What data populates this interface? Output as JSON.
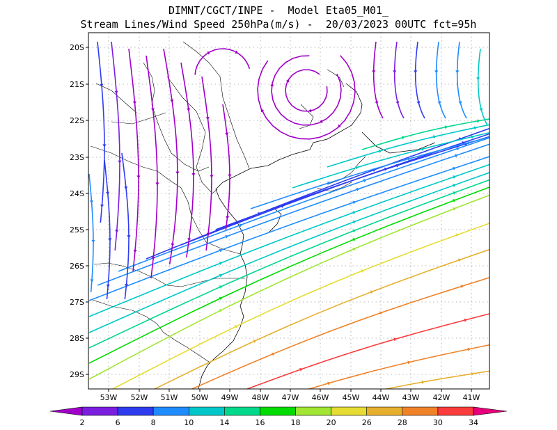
{
  "title": {
    "line1": "DIMNT/CGCT/INPE -  Model Eta05_M01_",
    "line2": "Stream Lines/Wind Speed 250hPa(m/s) -  20/03/2023 00UTC fct=95h"
  },
  "map": {
    "lat_labels": [
      "20S",
      "21S",
      "22S",
      "23S",
      "24S",
      "25S",
      "26S",
      "27S",
      "28S",
      "29S"
    ],
    "lon_labels": [
      "53W",
      "52W",
      "51W",
      "50W",
      "49W",
      "48W",
      "47W",
      "46W",
      "45W",
      "44W",
      "43W",
      "42W",
      "41W"
    ],
    "lat_range": [
      -20,
      -29.4
    ],
    "lon_range": [
      -53.6,
      -40.5
    ],
    "grid": true
  },
  "colorbar": {
    "labels": [
      "2",
      "6",
      "8",
      "10",
      "14",
      "16",
      "18",
      "20",
      "26",
      "28",
      "30",
      "34"
    ],
    "colors": [
      "#a000c8",
      "#7a1ee0",
      "#2e3cf0",
      "#1e8cff",
      "#00c8c8",
      "#00d88c",
      "#00dc00",
      "#a0e632",
      "#e6dc32",
      "#e6af2d",
      "#f08228",
      "#fa3c3c",
      "#e6007a"
    ]
  }
}
